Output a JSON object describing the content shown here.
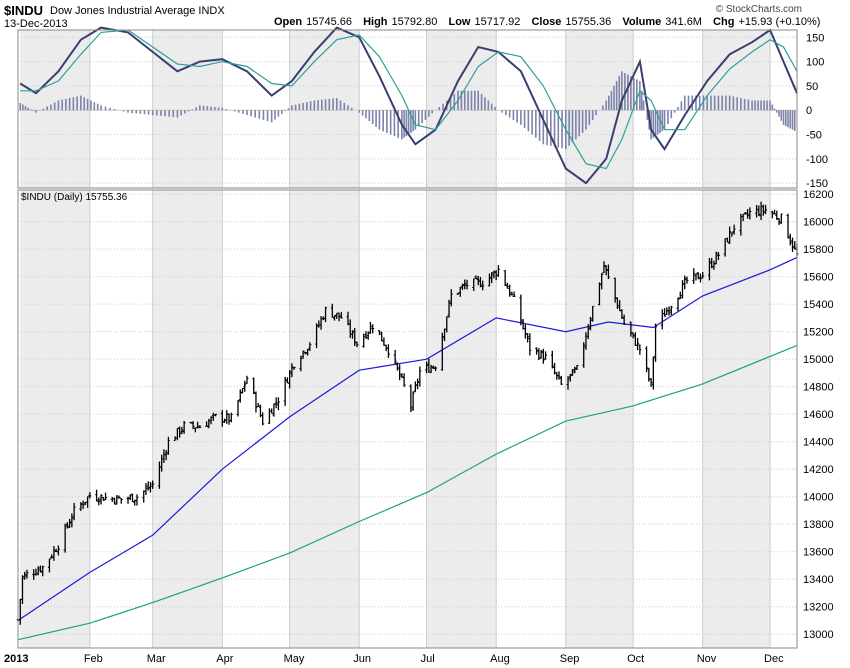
{
  "header": {
    "symbol": "$INDU",
    "name": "Dow Jones Industrial Average",
    "exchange": "INDX",
    "date": "13-Dec-2013",
    "copyright": "© StockCharts.com",
    "open_label": "Open",
    "open": "15745.66",
    "high_label": "High",
    "high": "15792.80",
    "low_label": "Low",
    "low": "15717.92",
    "close_label": "Close",
    "close": "15755.36",
    "volume_label": "Volume",
    "volume": "341.6M",
    "chg_label": "Chg",
    "chg": "+15.93 (+0.10%)"
  },
  "colors": {
    "macd_line": "#3a3f6e",
    "signal_line": "#2aa198",
    "histogram": "#7c83a8",
    "price_bars": "#000000",
    "ma_short": "#1a1adb",
    "ma_long": "#1aa08c",
    "panel_bg_band": "#ececec",
    "grid": "#cccccc"
  },
  "price_label": "$INDU (Daily) 15755.36",
  "chart_data": [
    {
      "type": "line",
      "panel": "indicator",
      "y_ticks": [
        150,
        100,
        50,
        0,
        -50,
        -100,
        -150
      ],
      "ylim": [
        -160,
        165
      ],
      "x": [
        "Jan 1",
        "Jan 8",
        "Jan 18",
        "Jan 28",
        "Feb 6",
        "Feb 18",
        "Mar 1",
        "Mar 12",
        "Mar 22",
        "Apr 1",
        "Apr 12",
        "Apr 23",
        "May 2",
        "May 12",
        "May 22",
        "Jun 1",
        "Jun 10",
        "Jun 20",
        "Jun 26",
        "Jul 5",
        "Jul 15",
        "Jul 24",
        "Aug 2",
        "Aug 12",
        "Aug 22",
        "Sep 1",
        "Sep 10",
        "Sep 19",
        "Sep 26",
        "Oct 4",
        "Oct 9",
        "Oct 15",
        "Oct 24",
        "Nov 3",
        "Nov 13",
        "Nov 23",
        "Dec 1",
        "Dec 7",
        "Dec 13"
      ],
      "series": [
        {
          "name": "",
          "role": "macd",
          "values": [
            55,
            35,
            80,
            145,
            170,
            160,
            120,
            80,
            100,
            105,
            80,
            30,
            60,
            120,
            170,
            150,
            70,
            -30,
            -70,
            -40,
            60,
            130,
            120,
            80,
            -20,
            -120,
            -150,
            -100,
            20,
            100,
            -40,
            -80,
            -10,
            60,
            115,
            140,
            165,
            100,
            35
          ]
        },
        {
          "name": "",
          "role": "signal",
          "values": [
            40,
            40,
            60,
            115,
            160,
            165,
            130,
            95,
            90,
            100,
            90,
            55,
            50,
            100,
            145,
            155,
            110,
            30,
            -30,
            -40,
            20,
            90,
            120,
            110,
            50,
            -40,
            -110,
            -120,
            -60,
            40,
            20,
            -40,
            -40,
            30,
            85,
            120,
            145,
            130,
            80
          ]
        }
      ],
      "histogram": [
        15,
        -5,
        20,
        30,
        10,
        -5,
        -10,
        -15,
        10,
        5,
        -10,
        -25,
        10,
        20,
        25,
        -5,
        -40,
        -60,
        -40,
        0,
        40,
        40,
        0,
        -30,
        -70,
        -80,
        -40,
        20,
        80,
        60,
        -60,
        -40,
        30,
        30,
        30,
        20,
        20,
        -30,
        -45
      ]
    },
    {
      "type": "ohlc",
      "panel": "price",
      "title": "$INDU (Daily) 15755.36",
      "y_ticks": [
        16200,
        16000,
        15800,
        15600,
        15400,
        15200,
        15000,
        14800,
        14600,
        14400,
        14200,
        14000,
        13800,
        13600,
        13400,
        13200,
        13000
      ],
      "ylim": [
        12900,
        16230
      ],
      "x_labels": [
        "2013",
        "Feb",
        "Mar",
        "Apr",
        "May",
        "Jun",
        "Jul",
        "Aug",
        "Sep",
        "Oct",
        "Nov",
        "Dec"
      ],
      "x_date_range": [
        "2012-12-31",
        "2013-12-13"
      ],
      "close_series": {
        "x": [
          "2012-12-31",
          "2013-01-02",
          "2013-01-04",
          "2013-01-11",
          "2013-01-18",
          "2013-01-25",
          "2013-02-01",
          "2013-02-08",
          "2013-02-15",
          "2013-02-22",
          "2013-03-01",
          "2013-03-08",
          "2013-03-15",
          "2013-03-22",
          "2013-03-29",
          "2013-04-05",
          "2013-04-12",
          "2013-04-19",
          "2013-04-26",
          "2013-05-03",
          "2013-05-10",
          "2013-05-17",
          "2013-05-24",
          "2013-05-31",
          "2013-06-07",
          "2013-06-14",
          "2013-06-21",
          "2013-06-24",
          "2013-06-28",
          "2013-07-05",
          "2013-07-12",
          "2013-07-19",
          "2013-07-26",
          "2013-08-02",
          "2013-08-09",
          "2013-08-16",
          "2013-08-23",
          "2013-08-30",
          "2013-09-06",
          "2013-09-13",
          "2013-09-18",
          "2013-09-27",
          "2013-10-04",
          "2013-10-09",
          "2013-10-11",
          "2013-10-18",
          "2013-10-25",
          "2013-11-01",
          "2013-11-08",
          "2013-11-15",
          "2013-11-22",
          "2013-11-29",
          "2013-12-06",
          "2013-12-13"
        ],
        "close": [
          13104,
          13412,
          13435,
          13488,
          13650,
          13895,
          14009,
          13993,
          13981,
          14000,
          14089,
          14397,
          14514,
          14512,
          14578,
          14565,
          14865,
          14547,
          14712,
          14974,
          15118,
          15354,
          15304,
          15116,
          15248,
          15070,
          14800,
          14660,
          14910,
          14960,
          15464,
          15543,
          15559,
          15650,
          15425,
          15081,
          15010,
          14810,
          14922,
          15376,
          15677,
          15258,
          15073,
          14802,
          15237,
          15400,
          15570,
          15615,
          15761,
          15962,
          16064,
          16086,
          16021,
          15755
        ]
      },
      "series": [
        {
          "name": "",
          "role": "moving average (short)",
          "x": [
            "2012-12-31",
            "2013-02-01",
            "2013-03-01",
            "2013-04-01",
            "2013-05-01",
            "2013-06-01",
            "2013-07-01",
            "2013-08-01",
            "2013-09-01",
            "2013-09-20",
            "2013-10-10",
            "2013-11-01",
            "2013-12-01",
            "2013-12-13"
          ],
          "values": [
            13100,
            13450,
            13720,
            14200,
            14580,
            14920,
            15000,
            15300,
            15200,
            15270,
            15230,
            15460,
            15650,
            15740
          ]
        },
        {
          "name": "",
          "role": "moving average (long)",
          "x": [
            "2012-12-31",
            "2013-02-01",
            "2013-03-01",
            "2013-04-01",
            "2013-05-01",
            "2013-06-01",
            "2013-07-01",
            "2013-08-01",
            "2013-09-01",
            "2013-10-01",
            "2013-11-01",
            "2013-12-01",
            "2013-12-13"
          ],
          "values": [
            12960,
            13080,
            13230,
            13410,
            13590,
            13820,
            14030,
            14310,
            14550,
            14660,
            14820,
            15020,
            15100
          ]
        }
      ]
    }
  ]
}
